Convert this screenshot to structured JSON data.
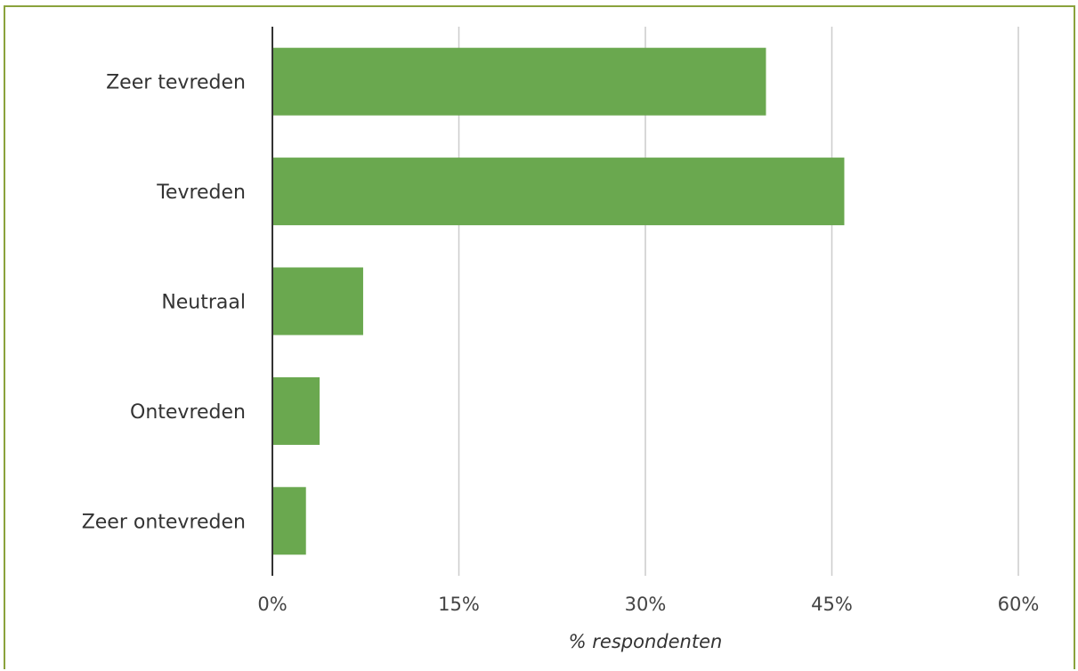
{
  "chart_data": {
    "type": "bar",
    "orientation": "horizontal",
    "categories": [
      "Zeer tevreden",
      "Tevreden",
      "Neutraal",
      "Ontevreden",
      "Zeer ontevreden"
    ],
    "values": [
      39.7,
      46.0,
      7.3,
      3.8,
      2.7
    ],
    "xlabel": "% respondenten",
    "ylabel": "",
    "xlim": [
      0,
      60
    ],
    "xticks": [
      0,
      15,
      30,
      45,
      60
    ],
    "xtick_labels": [
      "0%",
      "15%",
      "30%",
      "45%",
      "60%"
    ],
    "grid": true,
    "bar_color": "#6aa84f",
    "grid_color": "#cccccc",
    "frame_color": "#8aa23c"
  }
}
